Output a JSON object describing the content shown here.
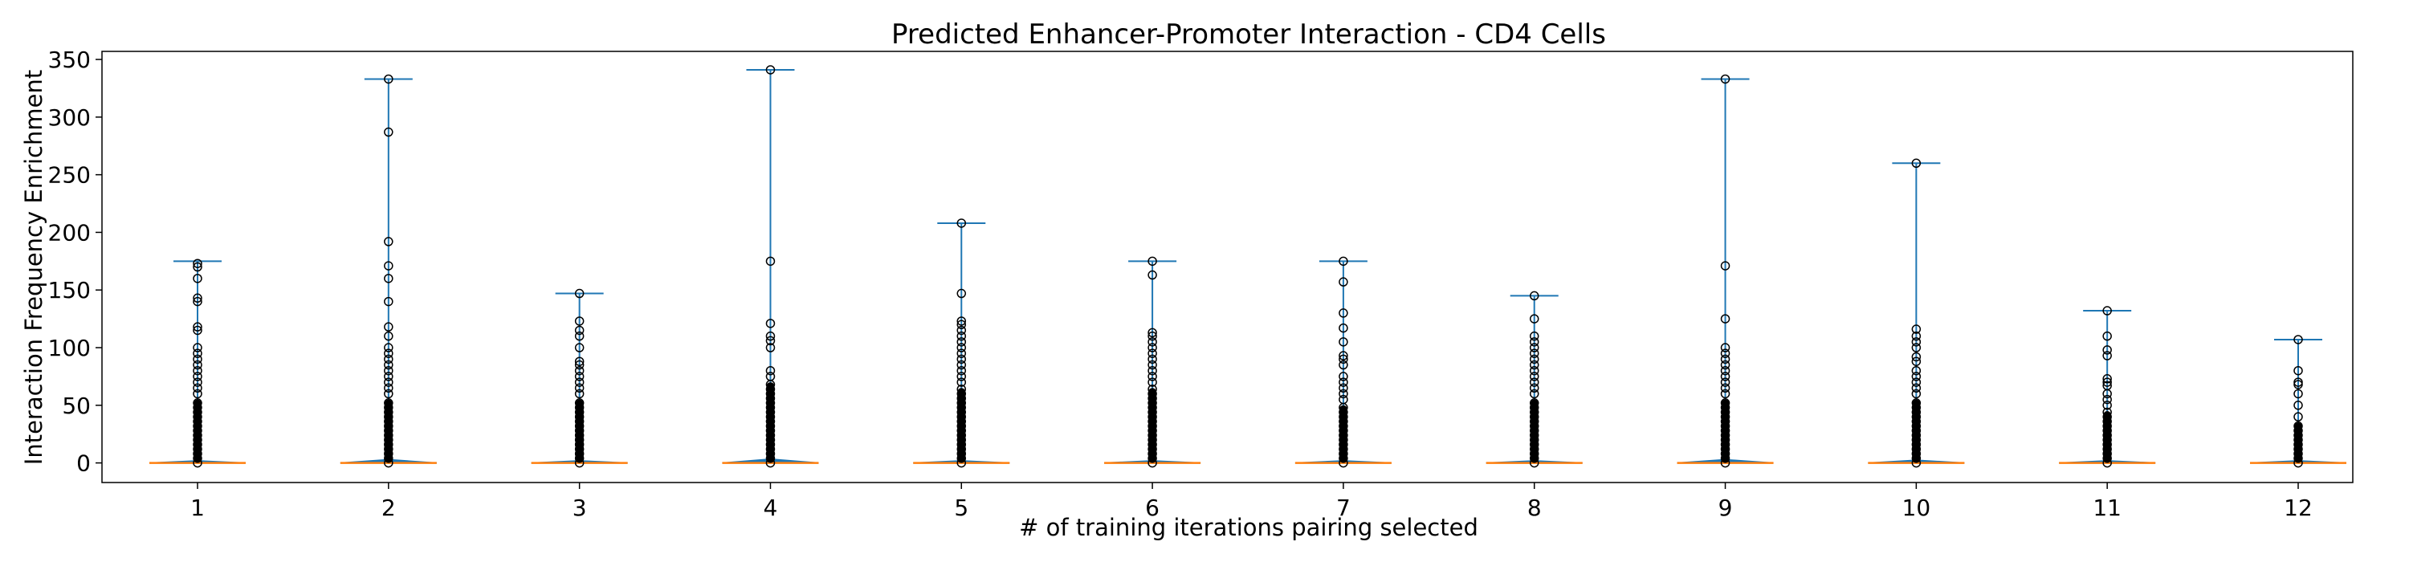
{
  "chart_data": {
    "type": "box",
    "title": "Predicted Enhancer-Promoter Interaction - CD4 Cells",
    "xlabel": "# of training iterations pairing selected",
    "ylabel": "Interaction Frequency Enrichment",
    "categories": [
      "1",
      "2",
      "3",
      "4",
      "5",
      "6",
      "7",
      "8",
      "9",
      "10",
      "11",
      "12"
    ],
    "ylim": [
      -17,
      357
    ],
    "yticks": [
      0,
      50,
      100,
      150,
      200,
      250,
      300,
      350
    ],
    "grid": false,
    "series_color": "#1f77b4",
    "median_color": "#ff7f0e",
    "boxes": [
      {
        "category": "1",
        "median": 0,
        "q1": 0,
        "q3": 0.5,
        "whisker_low": 0,
        "whisker_high": 175,
        "dense_outliers_to": 55,
        "outliers": [
          60,
          65,
          70,
          75,
          80,
          85,
          90,
          95,
          100,
          115,
          118,
          140,
          143,
          160,
          170,
          173
        ]
      },
      {
        "category": "2",
        "median": 0,
        "q1": 0,
        "q3": 1.5,
        "whisker_low": 0,
        "whisker_high": 333,
        "dense_outliers_to": 55,
        "outliers": [
          60,
          65,
          70,
          75,
          80,
          85,
          90,
          95,
          100,
          110,
          118,
          140,
          160,
          171,
          192,
          287,
          333
        ]
      },
      {
        "category": "3",
        "median": 0,
        "q1": 0,
        "q3": 0.5,
        "whisker_low": 0,
        "whisker_high": 147,
        "dense_outliers_to": 55,
        "outliers": [
          60,
          65,
          70,
          75,
          80,
          85,
          88,
          100,
          110,
          115,
          123,
          147
        ]
      },
      {
        "category": "4",
        "median": 0,
        "q1": 0,
        "q3": 2,
        "whisker_low": 0,
        "whisker_high": 341,
        "dense_outliers_to": 70,
        "outliers": [
          75,
          80,
          100,
          106,
          110,
          121,
          175,
          341
        ]
      },
      {
        "category": "5",
        "median": 0,
        "q1": 0,
        "q3": 0.5,
        "whisker_low": 0,
        "whisker_high": 208,
        "dense_outliers_to": 65,
        "outliers": [
          70,
          75,
          80,
          85,
          90,
          95,
          100,
          105,
          110,
          115,
          120,
          123,
          147,
          208
        ]
      },
      {
        "category": "6",
        "median": 0,
        "q1": 0,
        "q3": 0.5,
        "whisker_low": 0,
        "whisker_high": 175,
        "dense_outliers_to": 65,
        "outliers": [
          70,
          75,
          80,
          85,
          90,
          95,
          100,
          105,
          110,
          113,
          163,
          175
        ]
      },
      {
        "category": "7",
        "median": 0,
        "q1": 0,
        "q3": 0.5,
        "whisker_low": 0,
        "whisker_high": 175,
        "dense_outliers_to": 50,
        "outliers": [
          55,
          60,
          65,
          70,
          75,
          85,
          90,
          93,
          105,
          117,
          130,
          157,
          175
        ]
      },
      {
        "category": "8",
        "median": 0,
        "q1": 0,
        "q3": 0.5,
        "whisker_low": 0,
        "whisker_high": 145,
        "dense_outliers_to": 55,
        "outliers": [
          60,
          65,
          70,
          75,
          80,
          85,
          90,
          95,
          100,
          105,
          110,
          125,
          145
        ]
      },
      {
        "category": "9",
        "median": 0,
        "q1": 0,
        "q3": 1.5,
        "whisker_low": 0,
        "whisker_high": 333,
        "dense_outliers_to": 55,
        "outliers": [
          60,
          65,
          70,
          75,
          80,
          85,
          90,
          95,
          100,
          125,
          171,
          333
        ]
      },
      {
        "category": "10",
        "median": 0,
        "q1": 0,
        "q3": 1,
        "whisker_low": 0,
        "whisker_high": 260,
        "dense_outliers_to": 55,
        "outliers": [
          60,
          65,
          70,
          75,
          80,
          88,
          92,
          100,
          105,
          110,
          116,
          260
        ]
      },
      {
        "category": "11",
        "median": 0,
        "q1": 0,
        "q3": 0.5,
        "whisker_low": 0,
        "whisker_high": 132,
        "dense_outliers_to": 45,
        "outliers": [
          50,
          55,
          60,
          67,
          70,
          73,
          93,
          98,
          110,
          132
        ]
      },
      {
        "category": "12",
        "median": 0,
        "q1": 0,
        "q3": 0.5,
        "whisker_low": 0,
        "whisker_high": 107,
        "dense_outliers_to": 35,
        "outliers": [
          40,
          50,
          60,
          68,
          70,
          80,
          107
        ]
      }
    ]
  }
}
